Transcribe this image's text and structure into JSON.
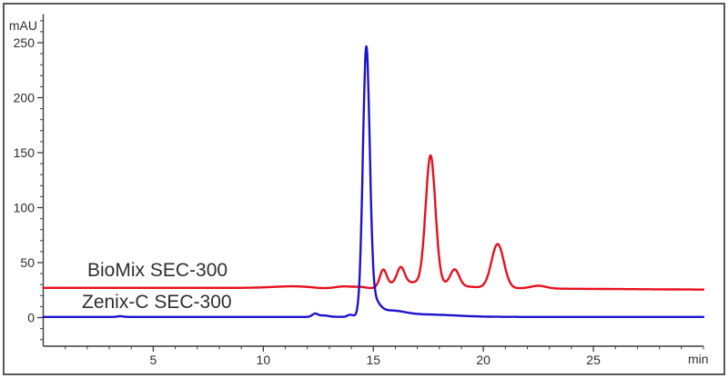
{
  "axes": {
    "x": {
      "unit_label": "min",
      "range": [
        0,
        30
      ],
      "major_ticks": [
        5,
        10,
        15,
        20,
        25
      ],
      "minor_step": 1
    },
    "y": {
      "unit_label": "mAU",
      "range": [
        -26,
        276
      ],
      "major_ticks": [
        0,
        50,
        100,
        150,
        200,
        250
      ],
      "minor_step": 10
    }
  },
  "annotations": [
    {
      "text": "BioMix SEC-300",
      "color": "#e8101e"
    },
    {
      "text": "Zenix-C SEC-300",
      "color": "#1c13cd"
    }
  ],
  "chart_data": {
    "type": "line",
    "title": "",
    "xlabel": "min",
    "ylabel": "mAU",
    "xlim": [
      0,
      30
    ],
    "ylim": [
      -26,
      276
    ],
    "grid": false,
    "legend_position": "inline-labels-left",
    "series": [
      {
        "name": "BioMix SEC-300",
        "color": "#e8101e",
        "baseline_mAU": 27,
        "peaks": [
          {
            "rt_min": 15.45,
            "apex_mAU": 44
          },
          {
            "rt_min": 16.25,
            "apex_mAU": 46
          },
          {
            "rt_min": 17.6,
            "apex_mAU": 148
          },
          {
            "rt_min": 18.7,
            "apex_mAU": 44
          },
          {
            "rt_min": 20.65,
            "apex_mAU": 67
          },
          {
            "rt_min": 22.5,
            "apex_mAU": 30
          }
        ],
        "model": {
          "baseline": 27,
          "baseline_decay_start": 18,
          "baseline_decay_rate": 0.13,
          "gaussians": [
            [
              11.3,
              1.4,
              0.9
            ],
            [
              12.7,
              -0.7,
              0.4
            ],
            [
              13.6,
              0.9,
              0.3
            ],
            [
              14.95,
              -2.2,
              0.28
            ],
            [
              15.45,
              14,
              0.15
            ],
            [
              16.25,
              14.5,
              0.17
            ],
            [
              16.9,
              5,
              1.5
            ],
            [
              17.6,
              116,
              0.22
            ],
            [
              18.7,
              14.5,
              0.2
            ],
            [
              20.65,
              40,
              0.28
            ],
            [
              22.5,
              2.5,
              0.35
            ]
          ]
        }
      },
      {
        "name": "Zenix-C SEC-300",
        "color": "#1c13cd",
        "baseline_mAU": 0,
        "peaks": [
          {
            "rt_min": 12.4,
            "apex_mAU": 4
          },
          {
            "rt_min": 14.7,
            "apex_mAU": 247
          }
        ],
        "model": {
          "baseline": 0.6,
          "baseline_decay_start": 99,
          "baseline_decay_rate": 0,
          "gaussians": [
            [
              3.5,
              0.7,
              0.12
            ],
            [
              12.35,
              2.8,
              0.13
            ],
            [
              12.75,
              1.3,
              0.22
            ],
            [
              13.95,
              1.8,
              0.12
            ],
            [
              14.68,
              237,
              0.155
            ],
            [
              14.98,
              14,
              0.28
            ],
            [
              15.8,
              4.5,
              0.6
            ],
            [
              17.3,
              2.2,
              1.4
            ]
          ]
        }
      }
    ]
  },
  "style": {
    "trace_width": 2.4,
    "axis_color": "#3c3c3c",
    "label_color": "#2e2e2e",
    "background": "#ffffff",
    "border_color": "#585858"
  }
}
